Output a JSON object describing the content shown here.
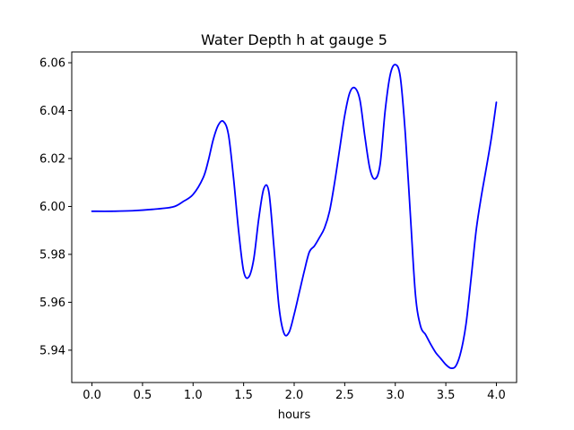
{
  "chart_data": {
    "type": "line",
    "title": "Water Depth h at gauge 5",
    "xlabel": "hours",
    "ylabel": "",
    "xlim": [
      -0.2,
      4.2
    ],
    "ylim": [
      5.9265,
      6.0645
    ],
    "xticks": [
      0.0,
      0.5,
      1.0,
      1.5,
      2.0,
      2.5,
      3.0,
      3.5,
      4.0
    ],
    "xtick_labels": [
      "0.0",
      "0.5",
      "1.0",
      "1.5",
      "2.0",
      "2.5",
      "3.0",
      "3.5",
      "4.0"
    ],
    "yticks": [
      5.94,
      5.96,
      5.98,
      6.0,
      6.02,
      6.04,
      6.06
    ],
    "ytick_labels": [
      "5.94",
      "5.96",
      "5.98",
      "6.00",
      "6.02",
      "6.04",
      "6.06"
    ],
    "grid": false,
    "series": [
      {
        "color": "#0000ff",
        "x": [
          0.0,
          0.2,
          0.4,
          0.6,
          0.8,
          0.9,
          1.0,
          1.1,
          1.15,
          1.2,
          1.25,
          1.3,
          1.35,
          1.4,
          1.45,
          1.5,
          1.55,
          1.6,
          1.65,
          1.7,
          1.75,
          1.8,
          1.85,
          1.9,
          1.95,
          2.0,
          2.05,
          2.1,
          2.15,
          2.2,
          2.25,
          2.3,
          2.35,
          2.4,
          2.45,
          2.5,
          2.55,
          2.6,
          2.65,
          2.7,
          2.75,
          2.8,
          2.85,
          2.9,
          2.95,
          3.0,
          3.05,
          3.1,
          3.15,
          3.2,
          3.25,
          3.3,
          3.35,
          3.4,
          3.45,
          3.5,
          3.55,
          3.6,
          3.65,
          3.7,
          3.75,
          3.8,
          3.85,
          3.9,
          3.95,
          4.0
        ],
        "y": [
          5.998,
          5.998,
          5.9982,
          5.9988,
          5.9998,
          6.002,
          6.005,
          6.012,
          6.019,
          6.028,
          6.034,
          6.0355,
          6.03,
          6.012,
          5.99,
          5.973,
          5.9705,
          5.978,
          5.995,
          6.0075,
          6.006,
          5.983,
          5.958,
          5.947,
          5.9475,
          5.955,
          5.964,
          5.973,
          5.981,
          5.9835,
          5.987,
          5.991,
          5.998,
          6.01,
          6.024,
          6.038,
          6.0475,
          6.0495,
          6.0445,
          6.029,
          6.0155,
          6.0115,
          6.0175,
          6.04,
          6.055,
          6.0592,
          6.054,
          6.03,
          5.996,
          5.963,
          5.95,
          5.9465,
          5.9425,
          5.939,
          5.9365,
          5.934,
          5.9325,
          5.9335,
          5.9395,
          5.951,
          5.97,
          5.99,
          6.004,
          6.016,
          6.0285,
          6.0435
        ]
      }
    ]
  }
}
